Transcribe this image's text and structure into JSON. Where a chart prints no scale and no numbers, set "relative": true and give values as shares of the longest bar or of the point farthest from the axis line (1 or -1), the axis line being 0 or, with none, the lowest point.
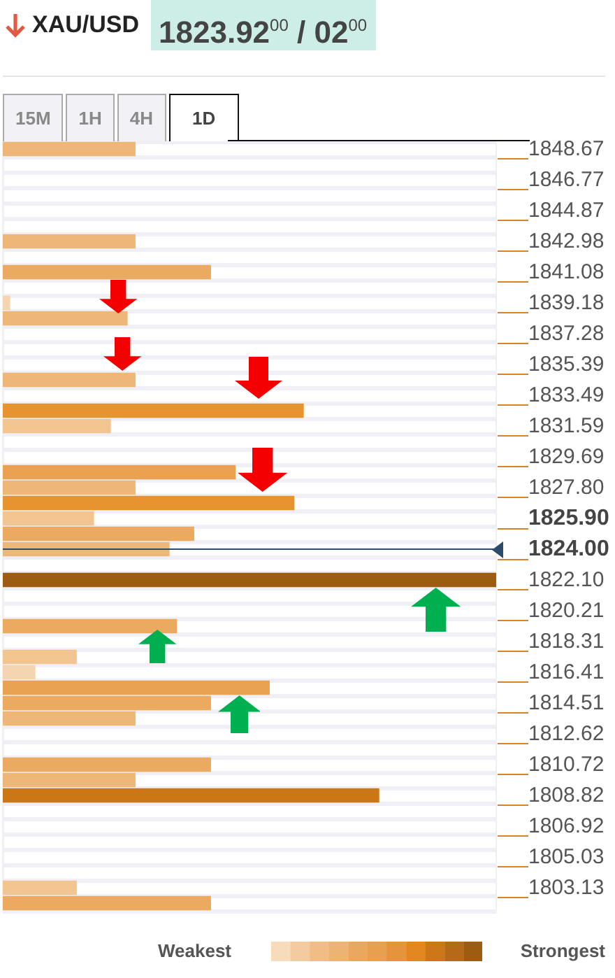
{
  "chart_data": {
    "type": "bar",
    "orientation": "horizontal",
    "relative": true,
    "title": "XAU/USD",
    "subtitle": "1823.92$^{00}$ / 02$^{00}$",
    "categories": [
      "1848.67",
      null,
      "1846.77",
      null,
      "1844.87",
      null,
      "1842.98",
      null,
      "1841.08",
      null,
      "1839.18",
      null,
      "1837.28",
      null,
      "1835.39",
      null,
      "1833.49",
      null,
      "1831.59",
      null,
      "1829.69",
      null,
      "1827.80",
      null,
      "1825.90",
      null,
      "1824.00",
      null,
      "1822.10",
      null,
      "1820.21",
      null,
      "1818.31",
      null,
      "1816.41",
      null,
      "1814.51",
      null,
      "1812.62",
      null,
      "1810.72",
      null,
      "1808.82",
      null,
      "1806.92",
      null,
      "1805.03",
      null,
      "1803.13",
      null
    ],
    "values": [
      0.269,
      null,
      null,
      null,
      null,
      null,
      0.269,
      null,
      0.422,
      null,
      0.015,
      0.253,
      null,
      null,
      null,
      0.269,
      null,
      0.61,
      0.219,
      null,
      null,
      0.472,
      0.269,
      0.591,
      0.185,
      0.388,
      0.338,
      null,
      1,
      null,
      null,
      0.353,
      null,
      0.15,
      0.066,
      0.541,
      0.422,
      0.269,
      null,
      null,
      0.422,
      0.269,
      0.763,
      null,
      null,
      null,
      null,
      null,
      0.15,
      0.422
    ],
    "colors": [
      "#eeb677",
      null,
      null,
      null,
      null,
      null,
      "#eeb677",
      null,
      "#ebaa60",
      null,
      "#f5d4b0",
      "#eeb677",
      null,
      null,
      null,
      "#eeb677",
      null,
      "#e6942f",
      "#f2c48f",
      null,
      null,
      "#eaa150",
      "#eeb677",
      "#e6942f",
      "#f2c48f",
      "#ebaa60",
      "#eeb677",
      null,
      "#9e5c12",
      null,
      null,
      "#ebaa60",
      null,
      "#f2c48f",
      "#f5d4b0",
      "#e9a152",
      "#ebaa60",
      "#eeb677",
      null,
      null,
      "#ebaa60",
      "#eeb677",
      "#cb7716",
      null,
      null,
      null,
      null,
      null,
      "#f2c48f",
      "#ebaa60"
    ],
    "ref_lines": [
      {
        "axis": "y",
        "value": "1824.00",
        "color": "#2d4a6b"
      }
    ],
    "grid": "y",
    "annotations": [
      "15M",
      "1H",
      "4H",
      "1D",
      "Weakest",
      "Strongest"
    ]
  }
}
